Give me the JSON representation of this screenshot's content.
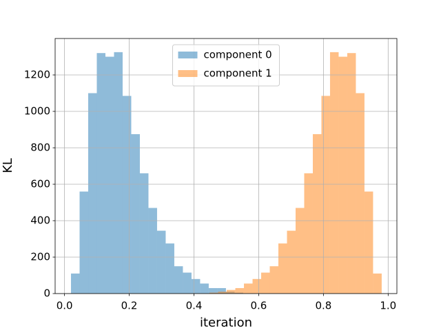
{
  "chart_data": {
    "type": "histogram",
    "x_label": "iteration",
    "y_label": "KL",
    "series": [
      {
        "name": "component 0",
        "color": "#1f77b4",
        "bins": [
          0.02,
          0.0466,
          0.0732,
          0.0998,
          0.1264,
          0.153,
          0.1796,
          0.2062,
          0.2328,
          0.2594,
          0.286,
          0.3126,
          0.3392,
          0.3658,
          0.3924,
          0.419,
          0.4456,
          0.4722,
          0.4988,
          0.5254,
          0.552
        ],
        "values": [
          110,
          560,
          1100,
          1320,
          1300,
          1325,
          1085,
          875,
          660,
          470,
          345,
          275,
          150,
          115,
          80,
          55,
          30,
          30,
          10,
          5
        ]
      },
      {
        "name": "component 1",
        "color": "#ff7f0e",
        "bins": [
          0.448,
          0.4746,
          0.5012,
          0.5278,
          0.5544,
          0.581,
          0.6076,
          0.6342,
          0.6608,
          0.6874,
          0.714,
          0.7406,
          0.7672,
          0.7938,
          0.8204,
          0.847,
          0.8736,
          0.9002,
          0.9268,
          0.9534,
          0.98
        ],
        "values": [
          5,
          10,
          20,
          30,
          55,
          80,
          115,
          150,
          275,
          345,
          470,
          660,
          875,
          1085,
          1325,
          1300,
          1320,
          1100,
          560,
          110
        ]
      }
    ],
    "alpha": 0.5,
    "xlim": [
      -0.029,
      1.027
    ],
    "xticks": [
      {
        "value": 0,
        "label": "0.0"
      },
      0.2,
      0.4,
      0.6,
      0.8,
      {
        "value": 1,
        "label": "1.0"
      }
    ],
    "ylim": [
      0,
      1400
    ],
    "yticks": [
      0,
      200,
      400,
      600,
      800,
      1000,
      1200
    ],
    "grid": true,
    "legend": "upper center"
  }
}
